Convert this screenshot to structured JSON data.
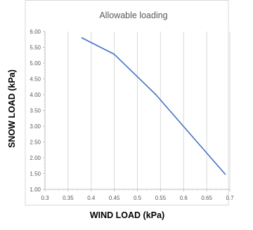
{
  "chart_data": {
    "type": "line",
    "title": "Allowable loading",
    "xlabel": "WIND LOAD (kPa)",
    "ylabel": "SNOW LOAD (kPa)",
    "xlim": [
      0.3,
      0.7
    ],
    "ylim": [
      1.0,
      6.0
    ],
    "x_ticks": [
      "0.3",
      "0.35",
      "0.4",
      "0.45",
      "0.5",
      "0.55",
      "0.6",
      "0.65",
      "0.7"
    ],
    "y_ticks": [
      "1.00",
      "1.50",
      "2.00",
      "2.50",
      "3.00",
      "3.50",
      "4.00",
      "4.50",
      "5.00",
      "5.50",
      "6.00"
    ],
    "grid": "vertical",
    "series": [
      {
        "x": [
          0.38,
          0.45,
          0.54,
          0.69
        ],
        "y": [
          5.8,
          5.28,
          4.0,
          1.48
        ]
      }
    ],
    "colors": {
      "line": "#4472C4",
      "grid": "#d9d9d9",
      "frame": "#d9d9d9",
      "axis": "#bfbfbf"
    }
  }
}
